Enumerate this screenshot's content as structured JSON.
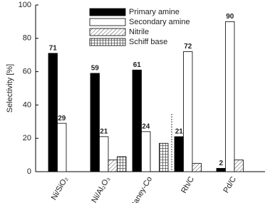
{
  "chart_data": {
    "type": "bar",
    "y_label": "Selectivity [%]",
    "categories": [
      "Ni/SiO₂",
      "Ni/Al₂O₃",
      "Raney-Co",
      "Rh/C",
      "Pd/C"
    ],
    "series": [
      {
        "name": "Primary amine",
        "color": "#000000",
        "pattern": "solid",
        "values": [
          71,
          59,
          61,
          21,
          2
        ],
        "labels_shown": true
      },
      {
        "name": "Secondary amine",
        "color": "#ffffff",
        "pattern": "solid",
        "values": [
          29,
          21,
          24,
          72,
          90
        ],
        "labels_shown": true
      },
      {
        "name": "Nitrile",
        "color": "#555555",
        "pattern": "hatch",
        "values": [
          null,
          7,
          null,
          5,
          7
        ],
        "labels_shown": false
      },
      {
        "name": "Schiff base",
        "color": "#555555",
        "pattern": "grid",
        "values": [
          null,
          9,
          17,
          null,
          null
        ],
        "labels_shown": false
      }
    ],
    "ylim": [
      0,
      100
    ],
    "yticks": [
      0,
      20,
      40,
      60,
      80,
      100
    ],
    "grid": false,
    "legend": "upper left"
  }
}
